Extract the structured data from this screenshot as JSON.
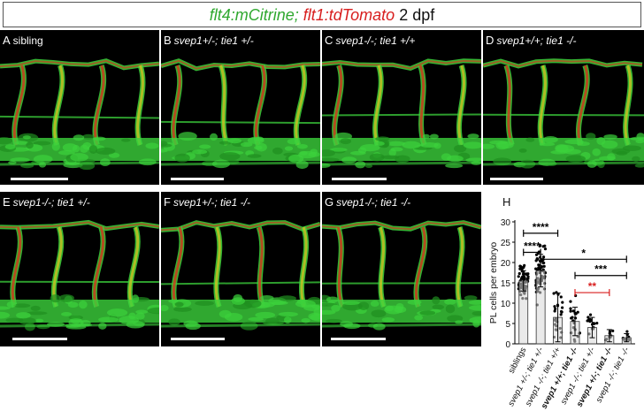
{
  "title": {
    "part1": "flt4:mCitrine;",
    "part2": "flt1:tdTomato",
    "part3": "2 dpf"
  },
  "panels": [
    {
      "letter": "A",
      "label": "sibling"
    },
    {
      "letter": "B",
      "label": "svep1+/-; tie1 +/-"
    },
    {
      "letter": "C",
      "label": "svep1-/-; tie1 +/+"
    },
    {
      "letter": "D",
      "label": "svep1+/+; tie1 -/-"
    },
    {
      "letter": "E",
      "label": "svep1-/-; tie1 +/-"
    },
    {
      "letter": "F",
      "label": "svep1+/-; tie1 -/-"
    },
    {
      "letter": "G",
      "label": "svep1-/-; tie1 -/-"
    }
  ],
  "colors": {
    "green": "#2fa82f",
    "red": "#d81e1e",
    "vessel_green": "#3cd23c",
    "vessel_red": "#e02a1a",
    "vessel_yellow": "#d8c020",
    "bar_fill": "#d9d9d9"
  },
  "chart_data": {
    "type": "bar",
    "panel_letter": "H",
    "ylabel": "PL cells per embryo",
    "ylim": [
      0,
      30
    ],
    "yticks": [
      0,
      5,
      10,
      15,
      20,
      25,
      30
    ],
    "categories": [
      {
        "label": "siblings",
        "bold": false
      },
      {
        "label": "svep1 +/-; tie1 +/-",
        "bold": false
      },
      {
        "label": "svep1 -/-; tie1 +/+",
        "bold": false
      },
      {
        "label": "svep1 +/+; tie1 -/-",
        "bold": true
      },
      {
        "label": "svep1 -/-; tie1 +/-",
        "bold": false
      },
      {
        "label": "svep1 +/-; tie1 -/-",
        "bold": true
      },
      {
        "label": "svep1 -/-; tie1 -/-",
        "bold": false
      }
    ],
    "values": [
      15.5,
      18,
      6.5,
      5.5,
      4,
      2,
      1.5
    ],
    "errors": [
      2.5,
      4,
      6,
      3.5,
      2.5,
      1.5,
      1
    ],
    "significance": [
      {
        "from": 0,
        "to": 1,
        "label": "****",
        "color": "#000000",
        "y": 22.5
      },
      {
        "from": 0,
        "to": 2,
        "label": "****",
        "color": "#000000",
        "y": 27.2
      },
      {
        "from": 1,
        "to": 6,
        "label": "*",
        "color": "#000000",
        "y": 20.8
      },
      {
        "from": 3,
        "to": 6,
        "label": "***",
        "color": "#000000",
        "y": 16.8
      },
      {
        "from": 3,
        "to": 5,
        "label": "**",
        "color": "#d81e1e",
        "y": 12.6
      }
    ]
  }
}
